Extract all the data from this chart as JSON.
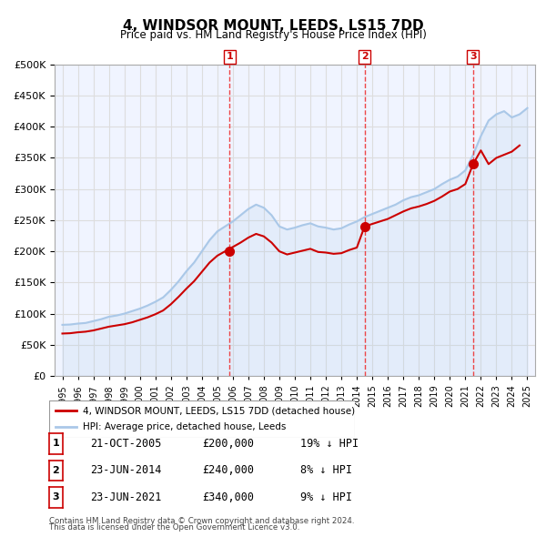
{
  "title": "4, WINDSOR MOUNT, LEEDS, LS15 7DD",
  "subtitle": "Price paid vs. HM Land Registry's House Price Index (HPI)",
  "legend_line1": "4, WINDSOR MOUNT, LEEDS, LS15 7DD (detached house)",
  "legend_line2": "HPI: Average price, detached house, Leeds",
  "footer1": "Contains HM Land Registry data © Crown copyright and database right 2024.",
  "footer2": "This data is licensed under the Open Government Licence v3.0.",
  "sale_color": "#cc0000",
  "hpi_color": "#aac8e8",
  "grid_color": "#dddddd",
  "background_color": "#f0f4ff",
  "sales": [
    {
      "label": "1",
      "date": "21-OCT-2005",
      "price": 200000,
      "note": "19% ↓ HPI",
      "x": 2005.8
    },
    {
      "label": "2",
      "date": "23-JUN-2014",
      "price": 240000,
      "note": "8% ↓ HPI",
      "x": 2014.5
    },
    {
      "label": "3",
      "date": "23-JUN-2021",
      "price": 340000,
      "note": "9% ↓ HPI",
      "x": 2021.5
    }
  ],
  "vline_color": "#ee3333",
  "marker_color": "#cc0000",
  "ylim": [
    0,
    500000
  ],
  "yticks": [
    0,
    50000,
    100000,
    150000,
    200000,
    250000,
    300000,
    350000,
    400000,
    450000,
    500000
  ],
  "xlim": [
    1994.5,
    2025.5
  ]
}
